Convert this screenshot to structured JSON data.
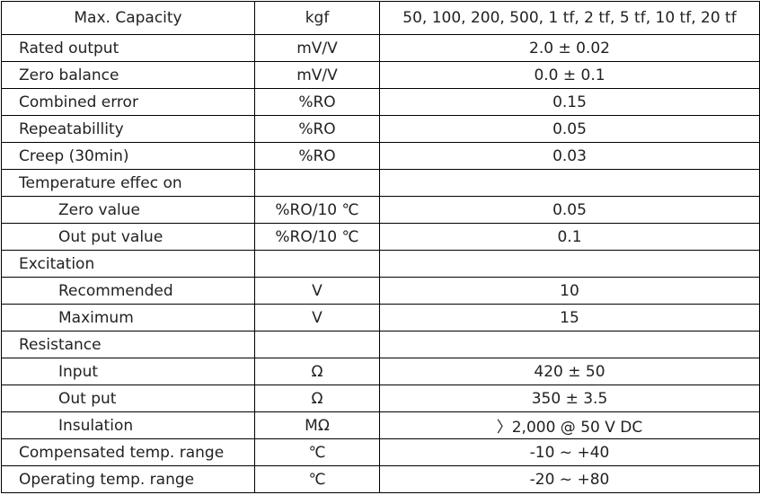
{
  "table": {
    "header": [
      "Max. Capacity",
      "kgf",
      "50, 100, 200, 500, 1 tf, 2 tf, 5 tf, 10 tf, 20 tf"
    ],
    "rows": [
      {
        "cells": [
          "Rated output",
          "mV/V",
          "2.0 ± 0.02"
        ]
      },
      {
        "cells": [
          "Zero balance",
          "mV/V",
          "0.0 ± 0.1"
        ]
      },
      {
        "cells": [
          "Combined error",
          "%RO",
          "0.15"
        ]
      },
      {
        "cells": [
          "Repeatabillity",
          "%RO",
          "0.05"
        ]
      },
      {
        "cells": [
          "Creep (30min)",
          "%RO",
          "0.03"
        ]
      },
      {
        "cells": [
          "Temperature effec on"
        ]
      },
      {
        "cells": [
          "Zero value",
          "%RO/10 ℃",
          "0.05"
        ],
        "indent": true
      },
      {
        "cells": [
          "Out put value",
          "%RO/10 ℃",
          "0.1"
        ],
        "indent": true
      },
      {
        "cells": [
          "Excitation"
        ]
      },
      {
        "cells": [
          "Recommended",
          "V",
          "10"
        ],
        "indent": true
      },
      {
        "cells": [
          "Maximum",
          "V",
          "15"
        ],
        "indent": true
      },
      {
        "cells": [
          "Resistance"
        ]
      },
      {
        "cells": [
          "Input",
          "Ω",
          "420 ± 50"
        ],
        "indent": true
      },
      {
        "cells": [
          "Out put",
          "Ω",
          "350 ± 3.5"
        ],
        "indent": true
      },
      {
        "cells": [
          "Insulation",
          "MΩ",
          "〉2,000 @ 50 V DC"
        ],
        "indent": true
      },
      {
        "cells": [
          "Compensated temp. range",
          "℃",
          "-10 ~ +40"
        ]
      },
      {
        "cells": [
          "Operating temp. range",
          "℃",
          "-20 ~ +80"
        ]
      }
    ]
  }
}
